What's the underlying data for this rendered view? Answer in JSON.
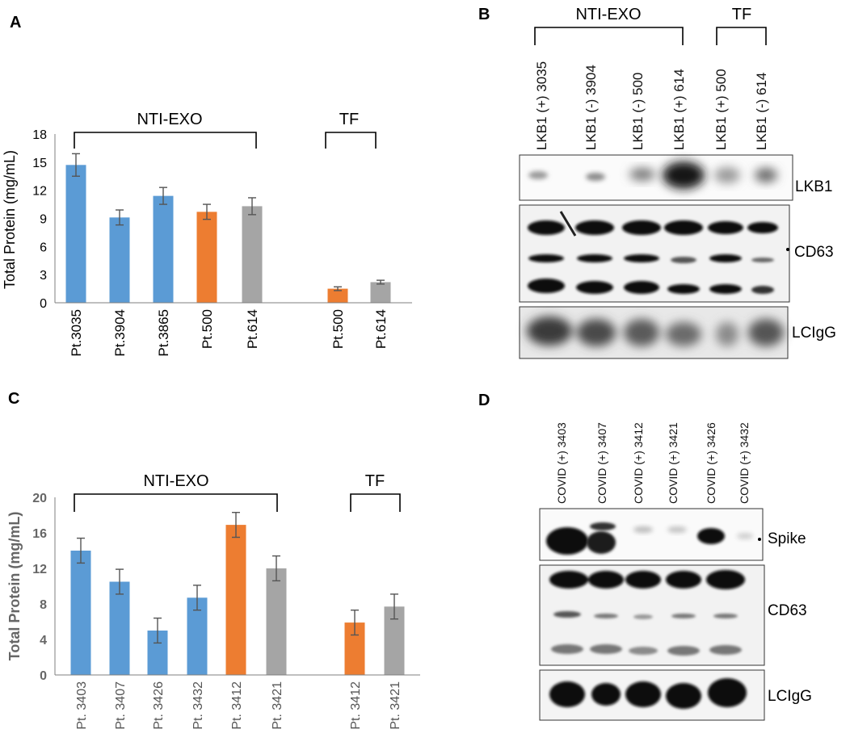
{
  "panels": {
    "A": {
      "letter": "A"
    },
    "B": {
      "letter": "B"
    },
    "C": {
      "letter": "C"
    },
    "D": {
      "letter": "D"
    }
  },
  "chart_data": [
    {
      "id": "A",
      "type": "bar",
      "categories": [
        "Pt.3035",
        "Pt.3904",
        "Pt.3865",
        "Pt.500",
        "Pt.614",
        "Pt.500",
        "Pt.614"
      ],
      "values": [
        14.7,
        9.1,
        11.4,
        9.7,
        10.3,
        1.5,
        2.2
      ],
      "errors": [
        1.2,
        0.8,
        0.9,
        0.8,
        0.9,
        0.2,
        0.2
      ],
      "colors": [
        "#5b9bd5",
        "#5b9bd5",
        "#5b9bd5",
        "#ed7d31",
        "#a5a5a5",
        "#ed7d31",
        "#a5a5a5"
      ],
      "xlabel": "",
      "ylabel": "Total Protein (mg/mL)",
      "ylim": [
        0,
        18
      ],
      "yticks": [
        "0",
        "3",
        "6",
        "9",
        "12",
        "15",
        "18"
      ],
      "groups": [
        {
          "label": "NTI-EXO"
        },
        {
          "label": "TF"
        }
      ],
      "grid": false
    },
    {
      "id": "C",
      "type": "bar",
      "categories": [
        "Pt. 3403",
        "Pt. 3407",
        "Pt. 3426",
        "Pt. 3432",
        "Pt. 3412",
        "Pt. 3421",
        "Pt. 3412",
        "Pt. 3421"
      ],
      "values": [
        14.0,
        10.5,
        5.0,
        8.7,
        16.9,
        12.0,
        5.9,
        7.7
      ],
      "errors": [
        1.4,
        1.4,
        1.4,
        1.4,
        1.4,
        1.4,
        1.4,
        1.4
      ],
      "colors": [
        "#5b9bd5",
        "#5b9bd5",
        "#5b9bd5",
        "#5b9bd5",
        "#ed7d31",
        "#a5a5a5",
        "#ed7d31",
        "#a5a5a5"
      ],
      "xlabel": "",
      "ylabel": "Total Protein (mg/mL)",
      "ylim": [
        0,
        20
      ],
      "yticks": [
        "0",
        "4",
        "8",
        "12",
        "16",
        "20"
      ],
      "groups": [
        {
          "label": "NTI-EXO"
        },
        {
          "label": "TF"
        }
      ],
      "grid": false
    }
  ],
  "blots": {
    "B": {
      "groups": [
        {
          "label": "NTI-EXO"
        },
        {
          "label": "TF"
        }
      ],
      "lanes": [
        "LKB1 (+) 3035",
        "LKB1 (-) 3904",
        "LKB1 (-) 500",
        "LKB1 (+) 614",
        "LKB1 (+) 500",
        "LKB1 (-) 614"
      ],
      "rows": [
        "LKB1",
        "CD63",
        "LCIgG"
      ]
    },
    "D": {
      "lanes": [
        "COVID (+) 3403",
        "COVID (+) 3407",
        "COVID (+) 3412",
        "COVID (+) 3421",
        "COVID (+) 3426",
        "COVID (+) 3432"
      ],
      "rows": [
        "Spike",
        "CD63",
        "LCIgG"
      ]
    }
  }
}
